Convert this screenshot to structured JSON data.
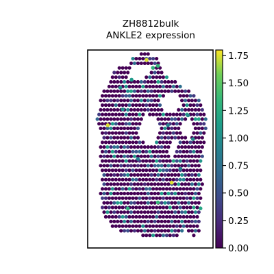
{
  "chart_data": {
    "type": "scatter",
    "title_line1": "ZH8812bulk",
    "title_line2": "ANKLE2 expression",
    "xlabel": "",
    "ylabel": "",
    "grid": false,
    "legend": "colorbar-right",
    "colormap": "viridis",
    "colorbar": {
      "vmin": 0.0,
      "vmax": 1.8,
      "ticks": [
        0.0,
        0.25,
        0.5,
        0.75,
        1.0,
        1.25,
        1.5,
        1.75
      ],
      "tick_labels": [
        "0.00",
        "0.25",
        "0.50",
        "0.75",
        "1.00",
        "1.25",
        "1.50",
        "1.75"
      ]
    },
    "tissue_spots": {
      "description_values": "Hexagonal grid of Visium spots; most spots have expression 0, scattered spots have nonzero values",
      "highlighted_spots": [
        {
          "x": 0.47,
          "y": 0.95,
          "value": 1.75
        },
        {
          "x": 0.52,
          "y": 0.91,
          "value": 1.3
        },
        {
          "x": 0.56,
          "y": 0.92,
          "value": 1.35
        },
        {
          "x": 0.26,
          "y": 0.81,
          "value": 1.0
        },
        {
          "x": 0.35,
          "y": 0.85,
          "value": 1.1
        },
        {
          "x": 0.16,
          "y": 0.62,
          "value": 1.75
        },
        {
          "x": 0.28,
          "y": 0.7,
          "value": 1.0
        },
        {
          "x": 0.64,
          "y": 0.62,
          "value": 0.9
        },
        {
          "x": 0.8,
          "y": 0.67,
          "value": 1.0
        },
        {
          "x": 0.84,
          "y": 0.55,
          "value": 1.0
        },
        {
          "x": 0.67,
          "y": 0.33,
          "value": 1.75
        },
        {
          "x": 0.32,
          "y": 0.2,
          "value": 1.3
        },
        {
          "x": 0.56,
          "y": 0.23,
          "value": 1.35
        },
        {
          "x": 0.9,
          "y": 0.2,
          "value": 1.2
        },
        {
          "x": 0.4,
          "y": 0.45,
          "value": 0.9
        },
        {
          "x": 0.74,
          "y": 0.4,
          "value": 0.85
        }
      ]
    }
  }
}
